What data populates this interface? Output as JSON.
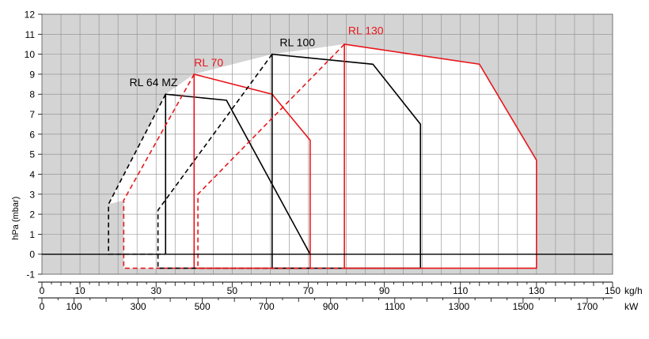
{
  "chart_data": {
    "type": "line",
    "title": "",
    "ylabel": "hPa (mbar)",
    "xlabel_primary": "kg/h",
    "xlabel_secondary": "kW",
    "xlim": [
      0,
      150
    ],
    "ylim": [
      -1,
      12
    ],
    "x_ticks": [
      "0",
      "10",
      "30",
      "50",
      "70",
      "90",
      "110",
      "130",
      "150"
    ],
    "y_ticks": [
      "-1",
      "0",
      "1",
      "2",
      "3",
      "4",
      "5",
      "6",
      "7",
      "8",
      "9",
      "10",
      "11",
      "12"
    ],
    "kw_ticks": [
      "0",
      "100",
      "300",
      "500",
      "700",
      "900",
      "1100",
      "1300",
      "1500",
      "1700"
    ],
    "grid": true,
    "colors": {
      "black_series": "#000000",
      "red_series": "#e8161b",
      "shade": "#d4d4d4",
      "grid": "#8c8c8c"
    },
    "series": [
      {
        "name": "RL 64 MZ",
        "color": "#000000",
        "label_at": [
          23,
          8.4
        ],
        "solid": [
          [
            32.5,
            0
          ],
          [
            32.5,
            8
          ],
          [
            48.5,
            7.7
          ],
          [
            70.5,
            0
          ]
        ],
        "dashed": [
          [
            32.5,
            8
          ],
          [
            17.5,
            2.5
          ],
          [
            17.5,
            0
          ],
          [
            32.5,
            0
          ]
        ]
      },
      {
        "name": "RL 70",
        "color": "#e8161b",
        "label_at": [
          40,
          9.4
        ],
        "solid": [
          [
            40,
            -0.7
          ],
          [
            40,
            9
          ],
          [
            60.5,
            8
          ],
          [
            70.5,
            5.7
          ],
          [
            70.5,
            -0.7
          ],
          [
            40,
            -0.7
          ]
        ],
        "dashed": [
          [
            40,
            9
          ],
          [
            21.5,
            2.7
          ],
          [
            21.5,
            -0.7
          ],
          [
            40,
            -0.7
          ]
        ]
      },
      {
        "name": "RL 100",
        "color": "#000000",
        "label_at": [
          62.5,
          10.4
        ],
        "solid": [
          [
            60.5,
            -0.7
          ],
          [
            60.5,
            10
          ],
          [
            87,
            9.5
          ],
          [
            99.5,
            6.5
          ],
          [
            99.5,
            -0.7
          ],
          [
            60.5,
            -0.7
          ]
        ],
        "dashed": [
          [
            60.5,
            10
          ],
          [
            30.5,
            2.2
          ],
          [
            30.5,
            -0.7
          ],
          [
            60.5,
            -0.7
          ]
        ]
      },
      {
        "name": "RL 130",
        "color": "#e8161b",
        "label_at": [
          80.5,
          11
        ],
        "solid": [
          [
            79.5,
            -0.7
          ],
          [
            79.5,
            10.5
          ],
          [
            115,
            9.5
          ],
          [
            130,
            4.7
          ],
          [
            130,
            -0.7
          ],
          [
            79.5,
            -0.7
          ]
        ],
        "dashed": [
          [
            79.5,
            10.5
          ],
          [
            41,
            3
          ],
          [
            41,
            -0.7
          ],
          [
            79.5,
            -0.7
          ]
        ]
      }
    ]
  }
}
